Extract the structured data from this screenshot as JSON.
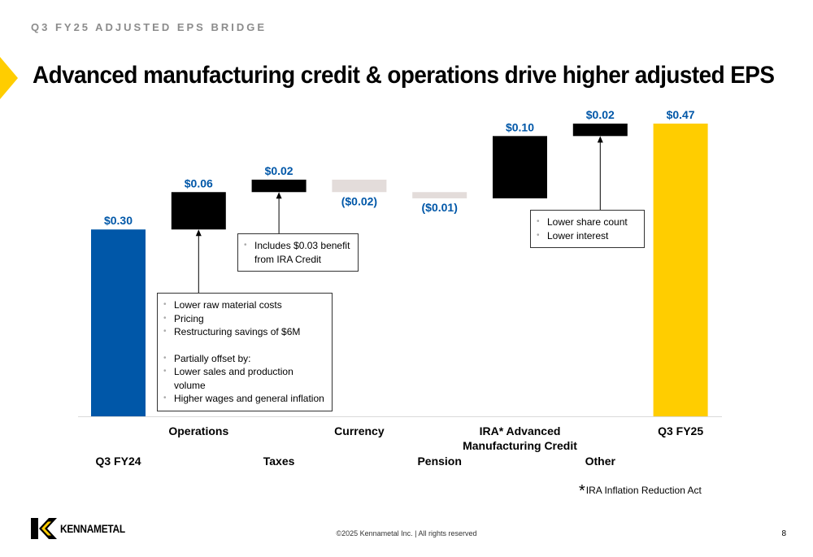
{
  "kicker": "Q3 FY25 ADJUSTED EPS BRIDGE",
  "headline": "Advanced manufacturing credit & operations drive higher adjusted EPS",
  "colors": {
    "start_bar": "#0057A8",
    "end_bar": "#FFCD00",
    "increase": "#000000",
    "decrease": "#E3DCDA",
    "value_label": "#0057A8",
    "accent": "#FFCD00"
  },
  "chart_data": {
    "type": "bar",
    "subtype": "waterfall",
    "categories": [
      "Q3 FY24",
      "Operations",
      "Taxes",
      "Currency",
      "Pension",
      "IRA* Advanced Manufacturing Credit",
      "Other",
      "Q3 FY25"
    ],
    "category_lines": [
      [
        "Q3 FY24"
      ],
      [
        "Operations"
      ],
      [
        "Taxes"
      ],
      [
        "Currency"
      ],
      [
        "Pension"
      ],
      [
        "IRA* Advanced",
        "Manufacturing Credit"
      ],
      [
        "Other"
      ],
      [
        "Q3 FY25"
      ]
    ],
    "values": [
      0.3,
      0.06,
      0.02,
      -0.02,
      -0.01,
      0.1,
      0.02,
      0.47
    ],
    "kinds": [
      "total",
      "delta",
      "delta",
      "delta",
      "delta",
      "delta",
      "delta",
      "total"
    ],
    "value_labels": [
      "$0.30",
      "$0.06",
      "$0.02",
      "($0.02)",
      "($0.01)",
      "$0.10",
      "$0.02",
      "$0.47"
    ],
    "ylim": [
      0,
      0.47
    ],
    "grid": false,
    "legend": "none"
  },
  "callouts": {
    "operations": [
      "Lower raw material costs",
      "Pricing",
      "Restructuring savings of $6M",
      "",
      "Partially offset by:",
      "Lower sales and production volume",
      "Higher wages and general inflation"
    ],
    "taxes": [
      "Includes $0.03 benefit from IRA Credit"
    ],
    "other": [
      "Lower share count",
      "Lower interest"
    ]
  },
  "footnote": {
    "star": "*",
    "text": "IRA Inflation Reduction Act"
  },
  "copyright": "©2025 Kennametal Inc.  |  All rights reserved",
  "page_number": "8",
  "logo_text": "KENNAMETAL"
}
